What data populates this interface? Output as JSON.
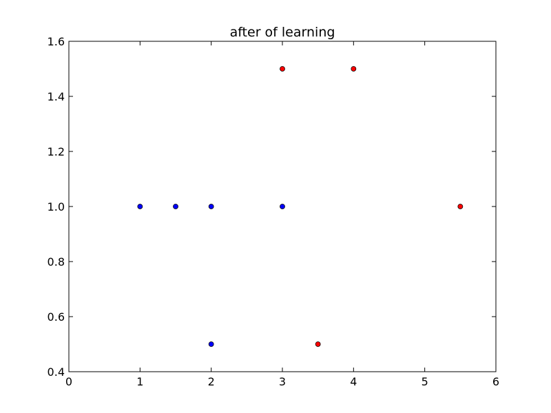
{
  "chart_data": {
    "type": "scatter",
    "title": "after of learning",
    "xlabel": "",
    "ylabel": "",
    "xlim": [
      0,
      6
    ],
    "ylim": [
      0.4,
      1.6
    ],
    "xticks": [
      0,
      1,
      2,
      3,
      4,
      5,
      6
    ],
    "yticks": [
      0.4,
      0.6,
      0.8,
      1.0,
      1.2,
      1.4,
      1.6
    ],
    "xtick_labels": [
      "0",
      "1",
      "2",
      "3",
      "4",
      "5",
      "6"
    ],
    "ytick_labels": [
      "0.4",
      "0.6",
      "0.8",
      "1.0",
      "1.2",
      "1.4",
      "1.6"
    ],
    "grid": false,
    "series": [
      {
        "color": "#0000ff",
        "points": [
          {
            "x": 1,
            "y": 1.0
          },
          {
            "x": 1.5,
            "y": 1.0
          },
          {
            "x": 2,
            "y": 1.0
          },
          {
            "x": 3,
            "y": 1.0
          },
          {
            "x": 2,
            "y": 0.5
          }
        ]
      },
      {
        "color": "#ff0000",
        "points": [
          {
            "x": 3,
            "y": 1.5
          },
          {
            "x": 4,
            "y": 1.5
          },
          {
            "x": 5.5,
            "y": 1.0
          },
          {
            "x": 3.5,
            "y": 0.5
          }
        ]
      }
    ]
  }
}
